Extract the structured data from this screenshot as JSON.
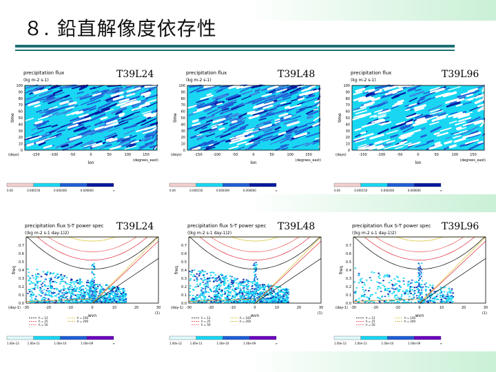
{
  "slide": {
    "title": "８. 鉛直解像度依存性"
  },
  "colors": {
    "light": "#dffaff",
    "cyan": "#19d7f2",
    "mid": "#1f5fd6",
    "dark": "#071aa0",
    "purple": "#6a00c0",
    "pink": "#f2d0d0"
  },
  "resolutions": [
    "T39L24",
    "T39L48",
    "T39L96"
  ],
  "hovmoller": {
    "title": "precipitation flux",
    "units": "(kg m-2 s-1)",
    "ylabel": "time",
    "yunits": "(days)",
    "xlabel": "lon",
    "xunits": "(degrees_east)",
    "xticks": [
      "-150",
      "-100",
      "-50",
      "0",
      "50",
      "100",
      "150"
    ],
    "yticks": [
      "0",
      "10",
      "20",
      "30",
      "40",
      "50",
      "60",
      "70",
      "80",
      "90",
      "100"
    ],
    "colorbar": [
      "0.00",
      "0.000150",
      "0.000300",
      "0.000600",
      "∞"
    ]
  },
  "spectrum": {
    "title": "precipitation flux S-T power spec",
    "units": "((kg m-2 s-1 day-1)2)",
    "ylabel": "freq",
    "yunits": "(day-1)",
    "xlabel": "wvn",
    "xunits": "(1)",
    "xticks": [
      "-30",
      "-20",
      "-10",
      "0",
      "10",
      "20",
      "30"
    ],
    "yticks": [
      "0.0",
      "0.1",
      "0.2",
      "0.3",
      "0.4",
      "0.5",
      "0.6",
      "0.7"
    ],
    "legend": [
      "h = 12",
      "h = 25",
      "h = 50",
      "h = 100",
      "h = 200"
    ],
    "colorbar": [
      "1.00e-12",
      "1.00e-11",
      "1.00e-10",
      "1.00e-09",
      "∞"
    ]
  },
  "chart_data": [
    {
      "type": "heatmap",
      "title": "precipitation flux",
      "subtitle": "T39L24",
      "xlabel": "lon",
      "ylabel": "time",
      "xlim": [
        -180,
        180
      ],
      "ylim": [
        0,
        100
      ],
      "colorbar_levels": [
        0,
        0.00015,
        0.0003,
        0.0006
      ]
    },
    {
      "type": "heatmap",
      "title": "precipitation flux",
      "subtitle": "T39L48",
      "xlabel": "lon",
      "ylabel": "time",
      "xlim": [
        -180,
        180
      ],
      "ylim": [
        0,
        100
      ],
      "colorbar_levels": [
        0,
        0.00015,
        0.0003,
        0.0006
      ]
    },
    {
      "type": "heatmap",
      "title": "precipitation flux",
      "subtitle": "T39L96",
      "xlabel": "lon",
      "ylabel": "time",
      "xlim": [
        -180,
        180
      ],
      "ylim": [
        0,
        100
      ],
      "colorbar_levels": [
        0,
        0.00015,
        0.0003,
        0.0006
      ]
    },
    {
      "type": "heatmap",
      "title": "precipitation flux S-T power spec",
      "subtitle": "T39L24",
      "xlabel": "wvn",
      "ylabel": "freq",
      "xlim": [
        -30,
        30
      ],
      "ylim": [
        0,
        0.8
      ],
      "colorbar_levels": [
        1e-12,
        1e-11,
        1e-10,
        1e-09
      ]
    },
    {
      "type": "heatmap",
      "title": "precipitation flux S-T power spec",
      "subtitle": "T39L48",
      "xlabel": "wvn",
      "ylabel": "freq",
      "xlim": [
        -30,
        30
      ],
      "ylim": [
        0,
        0.8
      ],
      "colorbar_levels": [
        1e-12,
        1e-11,
        1e-10,
        1e-09
      ]
    },
    {
      "type": "heatmap",
      "title": "precipitation flux S-T power spec",
      "subtitle": "T39L96",
      "xlabel": "wvn",
      "ylabel": "freq",
      "xlim": [
        -30,
        30
      ],
      "ylim": [
        0,
        0.8
      ],
      "colorbar_levels": [
        1e-12,
        1e-11,
        1e-10,
        1e-09
      ]
    }
  ]
}
